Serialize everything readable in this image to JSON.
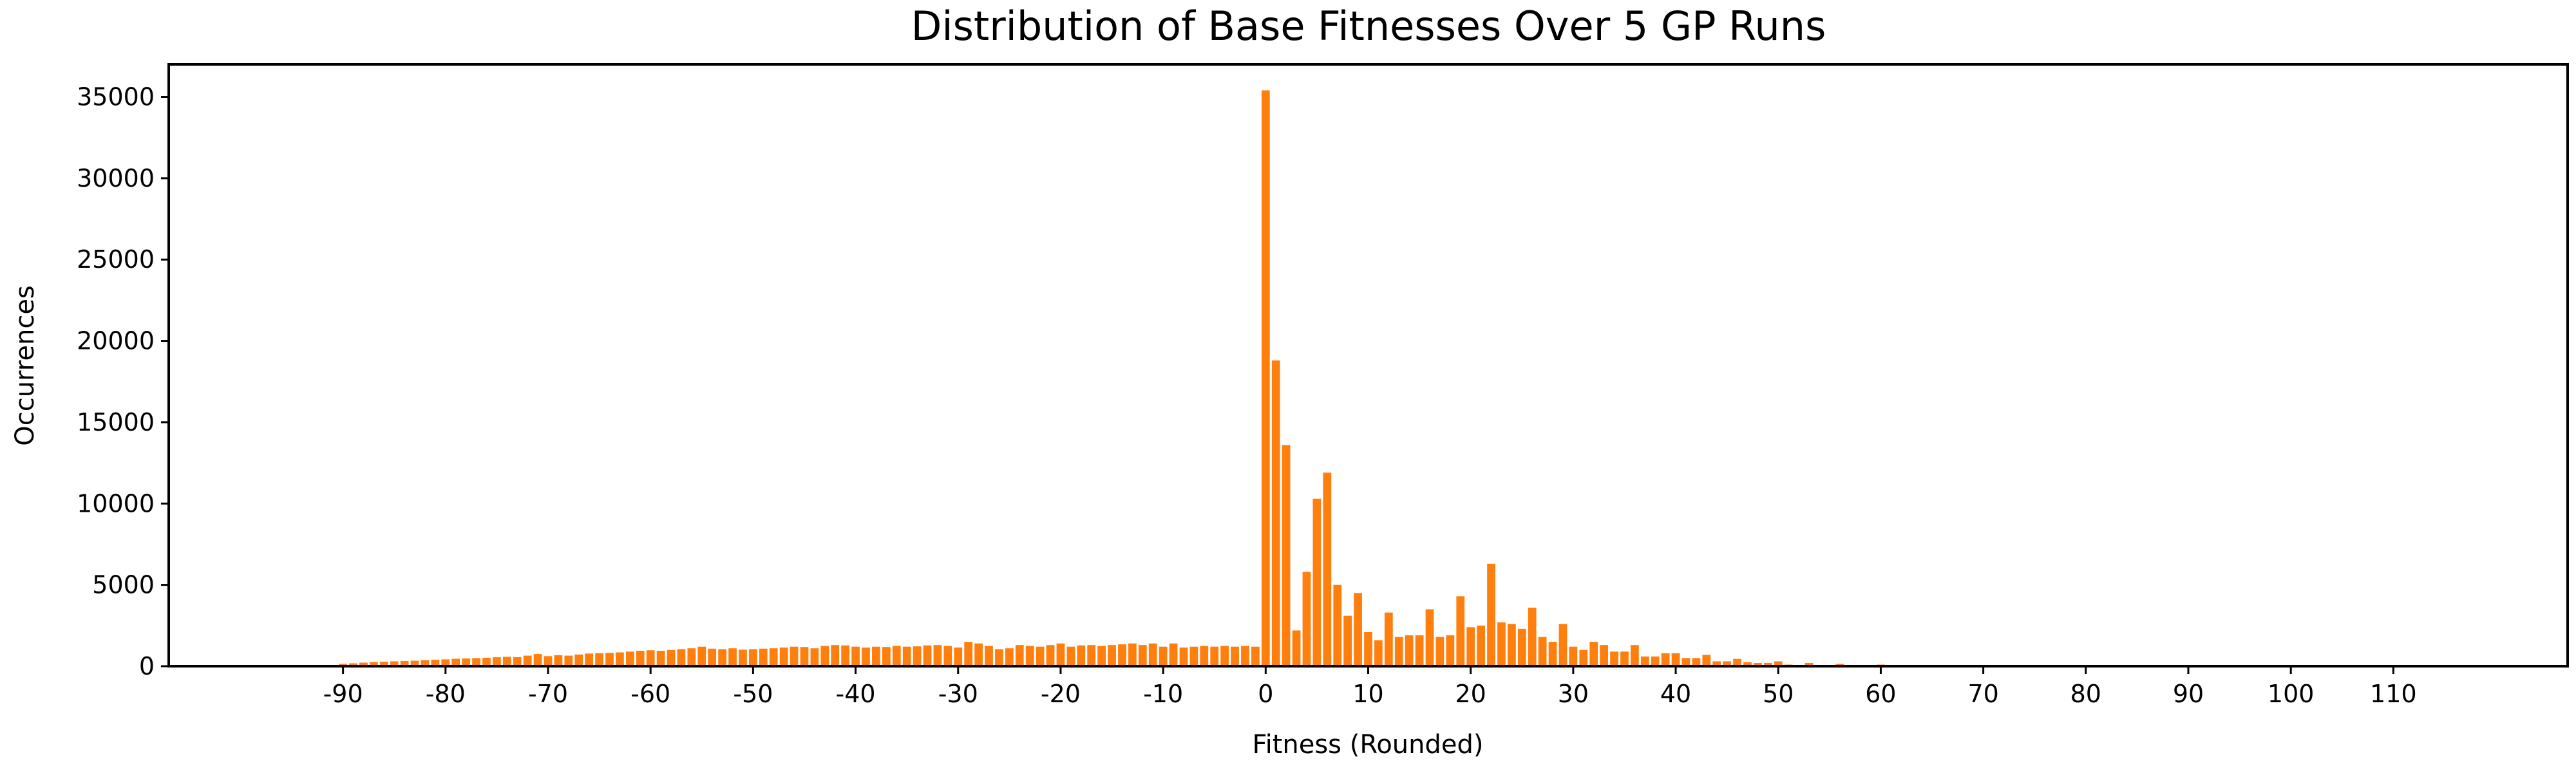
{
  "chart_data": {
    "type": "bar",
    "title": "Distribution of Base Fitnesses Over 5 GP Runs",
    "xlabel": "Fitness (Rounded)",
    "ylabel": "Occurrences",
    "xlim": [
      -107,
      127
    ],
    "ylim": [
      0,
      37000
    ],
    "xticks": [
      -90,
      -80,
      -70,
      -60,
      -50,
      -40,
      -30,
      -20,
      -10,
      0,
      10,
      20,
      30,
      40,
      50,
      60,
      70,
      80,
      90,
      100,
      110
    ],
    "yticks": [
      0,
      5000,
      10000,
      15000,
      20000,
      25000,
      30000,
      35000
    ],
    "grid": false,
    "bar_color": "#ff7f0e",
    "x": [
      -90,
      -89,
      -88,
      -87,
      -86,
      -85,
      -84,
      -83,
      -82,
      -81,
      -80,
      -79,
      -78,
      -77,
      -76,
      -75,
      -74,
      -73,
      -72,
      -71,
      -70,
      -69,
      -68,
      -67,
      -66,
      -65,
      -64,
      -63,
      -62,
      -61,
      -60,
      -59,
      -58,
      -57,
      -56,
      -55,
      -54,
      -53,
      -52,
      -51,
      -50,
      -49,
      -48,
      -47,
      -46,
      -45,
      -44,
      -43,
      -42,
      -41,
      -40,
      -39,
      -38,
      -37,
      -36,
      -35,
      -34,
      -33,
      -32,
      -31,
      -30,
      -29,
      -28,
      -27,
      -26,
      -25,
      -24,
      -23,
      -22,
      -21,
      -20,
      -19,
      -18,
      -17,
      -16,
      -15,
      -14,
      -13,
      -12,
      -11,
      -10,
      -9,
      -8,
      -7,
      -6,
      -5,
      -4,
      -3,
      -2,
      -1,
      0,
      1,
      2,
      3,
      4,
      5,
      6,
      7,
      8,
      9,
      10,
      11,
      12,
      13,
      14,
      15,
      16,
      17,
      18,
      19,
      20,
      21,
      22,
      23,
      24,
      25,
      26,
      27,
      28,
      29,
      30,
      31,
      32,
      33,
      34,
      35,
      36,
      37,
      38,
      39,
      40,
      41,
      42,
      43,
      44,
      45,
      46,
      47,
      48,
      49,
      50,
      51,
      52,
      53,
      54,
      55,
      56,
      57,
      58,
      59,
      60
    ],
    "values": [
      150,
      180,
      220,
      260,
      280,
      300,
      320,
      340,
      380,
      400,
      420,
      460,
      480,
      500,
      520,
      550,
      580,
      560,
      650,
      750,
      620,
      680,
      650,
      720,
      780,
      800,
      820,
      850,
      900,
      950,
      980,
      950,
      1000,
      1050,
      1100,
      1200,
      1080,
      1050,
      1100,
      1020,
      1050,
      1080,
      1100,
      1150,
      1200,
      1180,
      1100,
      1250,
      1300,
      1280,
      1200,
      1150,
      1200,
      1180,
      1250,
      1200,
      1220,
      1280,
      1300,
      1250,
      1150,
      1500,
      1400,
      1250,
      1050,
      1100,
      1300,
      1250,
      1200,
      1300,
      1400,
      1200,
      1280,
      1300,
      1250,
      1300,
      1350,
      1400,
      1300,
      1400,
      1200,
      1400,
      1150,
      1200,
      1250,
      1200,
      1250,
      1200,
      1250,
      1200,
      35400,
      18800,
      13600,
      2200,
      5800,
      10300,
      11900,
      5000,
      3100,
      4500,
      2100,
      1600,
      3300,
      1800,
      1900,
      1900,
      3500,
      1800,
      1900,
      4300,
      2400,
      2500,
      6300,
      2700,
      2600,
      2300,
      3600,
      1800,
      1500,
      2600,
      1200,
      1000,
      1500,
      1300,
      900,
      900,
      1300,
      600,
      600,
      800,
      800,
      500,
      500,
      700,
      300,
      300,
      450,
      250,
      200,
      200,
      300,
      100,
      50,
      200,
      50,
      40,
      150,
      20,
      10,
      10,
      100
    ]
  }
}
